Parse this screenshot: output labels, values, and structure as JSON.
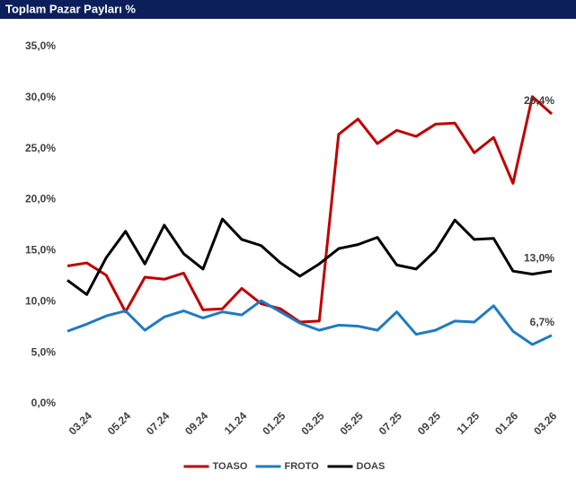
{
  "chart_data": {
    "type": "line",
    "title": "Toplam Pazar Payları %",
    "categories": [
      null,
      "03.24",
      null,
      "05.24",
      null,
      "07.24",
      null,
      "09.24",
      null,
      "11.24",
      null,
      "01.25",
      null,
      "03.25",
      null,
      "05.25",
      null,
      "07.25",
      null,
      "09.25",
      null,
      "11.25",
      null,
      "01.26",
      null,
      "03.26"
    ],
    "series": [
      {
        "name": "TOASO",
        "color": "#c00000",
        "values": [
          13.5,
          13.8,
          12.6,
          9.0,
          12.4,
          12.2,
          12.8,
          9.2,
          9.3,
          11.3,
          9.8,
          9.3,
          8.0,
          8.1,
          26.4,
          27.9,
          25.5,
          26.8,
          26.2,
          27.4,
          27.5,
          24.6,
          26.1,
          21.6,
          30.1,
          28.4
        ],
        "value_labels": [
          null,
          null,
          null,
          null,
          null,
          null,
          null,
          null,
          null,
          null,
          null,
          null,
          null,
          null,
          null,
          null,
          null,
          null,
          null,
          null,
          null,
          null,
          null,
          null,
          null,
          "28,4%"
        ]
      },
      {
        "name": "FROTO",
        "color": "#1f7bc1",
        "values": [
          7.1,
          7.8,
          8.6,
          9.1,
          7.2,
          8.5,
          9.1,
          8.4,
          9.0,
          8.7,
          10.1,
          9.0,
          7.9,
          7.2,
          7.7,
          7.6,
          7.2,
          9.0,
          6.8,
          7.2,
          8.1,
          8.0,
          9.6,
          7.1,
          5.8,
          6.7
        ],
        "value_labels": [
          null,
          null,
          null,
          null,
          null,
          null,
          null,
          null,
          null,
          null,
          null,
          null,
          null,
          null,
          null,
          null,
          null,
          null,
          null,
          null,
          null,
          null,
          null,
          null,
          null,
          "6,7%"
        ]
      },
      {
        "name": "DOAS",
        "color": "#000000",
        "values": [
          12.1,
          10.7,
          14.3,
          16.9,
          13.7,
          17.5,
          14.7,
          13.2,
          18.1,
          16.1,
          15.5,
          13.8,
          12.5,
          13.7,
          15.2,
          15.6,
          16.3,
          13.6,
          13.2,
          15.0,
          18.0,
          16.1,
          16.2,
          13.0,
          12.7,
          13.0
        ],
        "value_labels": [
          null,
          null,
          null,
          null,
          null,
          null,
          null,
          null,
          null,
          null,
          null,
          null,
          null,
          null,
          null,
          null,
          null,
          null,
          null,
          null,
          null,
          null,
          null,
          null,
          null,
          "13,0%"
        ]
      }
    ],
    "ylim": [
      0,
      35
    ],
    "yticks": [
      {
        "value": 0,
        "label": "0,0%"
      },
      {
        "value": 5,
        "label": "5,0%"
      },
      {
        "value": 10,
        "label": "10,0%"
      },
      {
        "value": 15,
        "label": "15,0%"
      },
      {
        "value": 20,
        "label": "20,0%"
      },
      {
        "value": 25,
        "label": "25,0%"
      },
      {
        "value": 30,
        "label": "30,0%"
      },
      {
        "value": 35,
        "label": "35,0%"
      }
    ],
    "grid": false,
    "legend": "bottom"
  }
}
